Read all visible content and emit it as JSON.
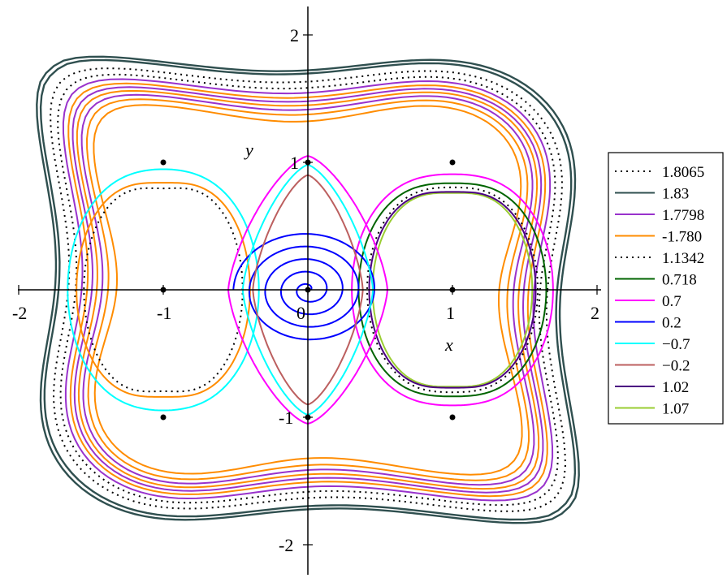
{
  "chart_data": {
    "type": "line",
    "title": "",
    "xlabel": "x",
    "ylabel": "y",
    "xlim": [
      -2,
      2
    ],
    "ylim": [
      -2,
      2
    ],
    "x_ticks": [
      "-2",
      "-1",
      "0",
      "1",
      "2"
    ],
    "y_ticks": [
      "-2",
      "-1",
      "1",
      "2"
    ],
    "grid": false,
    "legend_position": "right",
    "equilibria": [
      {
        "x": -1,
        "y": 1
      },
      {
        "x": 1,
        "y": 1
      },
      {
        "x": -1,
        "y": -1
      },
      {
        "x": 1,
        "y": -1
      },
      {
        "x": -1,
        "y": 0
      },
      {
        "x": 1,
        "y": 0
      },
      {
        "x": 0,
        "y": 1
      },
      {
        "x": 0,
        "y": -1
      },
      {
        "x": 0,
        "y": 0
      }
    ],
    "series": [
      {
        "name": "1.8065",
        "color": "#000000",
        "style": "dotted"
      },
      {
        "name": "1.83",
        "color": "#2f4f4f",
        "style": "solid"
      },
      {
        "name": "1.7798",
        "color": "#9932cc",
        "style": "solid"
      },
      {
        "name": "-1.780",
        "color": "#ff8c00",
        "style": "solid"
      },
      {
        "name": "1.1342",
        "color": "#000000",
        "style": "dotted"
      },
      {
        "name": "0.718",
        "color": "#006400",
        "style": "solid"
      },
      {
        "name": "0.7",
        "color": "#ff00ff",
        "style": "solid"
      },
      {
        "name": "0.2",
        "color": "#0000ff",
        "style": "solid"
      },
      {
        "name": "−0.7",
        "color": "#00ffff",
        "style": "solid"
      },
      {
        "name": "−0.2",
        "color": "#bc5f5f",
        "style": "solid"
      },
      {
        "name": "1.02",
        "color": "#4b0082",
        "style": "solid"
      },
      {
        "name": "1.07",
        "color": "#9acd32",
        "style": "solid"
      }
    ]
  }
}
